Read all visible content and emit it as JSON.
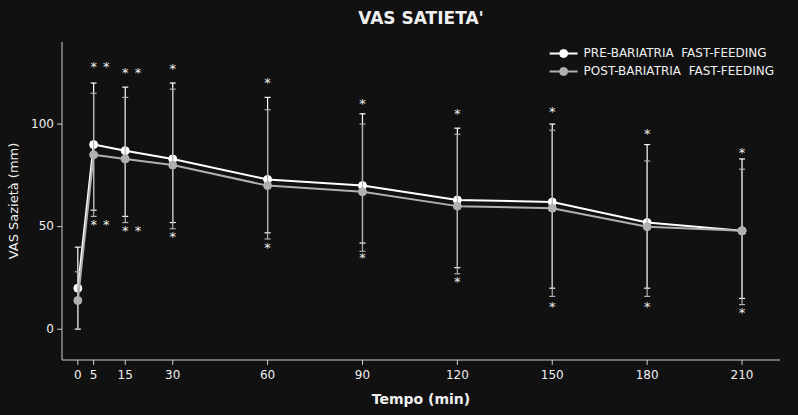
{
  "chart_data": {
    "type": "line",
    "title": "VAS SATIETA'",
    "xlabel": "Tempo (min)",
    "ylabel": "VAS Sazietà (mm)",
    "x": [
      0,
      5,
      15,
      30,
      60,
      90,
      120,
      150,
      180,
      210
    ],
    "xlim": [
      -5,
      222
    ],
    "xticks": [
      0,
      5,
      15,
      30,
      60,
      90,
      120,
      150,
      180,
      210
    ],
    "ylim": [
      -15,
      140
    ],
    "yticks": [
      0,
      50,
      100
    ],
    "grid": false,
    "legend": "upper right",
    "series": [
      {
        "name": "PRE-BARIATRIA  FAST-FEEDING",
        "color": "#ffffff",
        "marker": "circle",
        "values": [
          20,
          90,
          87,
          83,
          73,
          70,
          63,
          62,
          52,
          48
        ],
        "yerr_up": [
          20,
          30,
          31,
          37,
          40,
          35,
          35,
          38,
          38,
          35
        ],
        "yerr_down": [
          20,
          32,
          32,
          31,
          26,
          28,
          33,
          42,
          32,
          33
        ]
      },
      {
        "name": "POST-BARIATRIA  FAST-FEEDING",
        "color": "#b0b0b0",
        "marker": "circle",
        "values": [
          14,
          85,
          83,
          80,
          70,
          67,
          60,
          59,
          50,
          48
        ],
        "yerr_up": [
          14,
          30,
          30,
          37,
          37,
          33,
          35,
          38,
          32,
          30
        ],
        "yerr_down": [
          14,
          30,
          31,
          31,
          26,
          29,
          33,
          43,
          34,
          36
        ]
      }
    ],
    "annotations": [
      {
        "text": "*",
        "x": 5,
        "y": 126,
        "position": "above"
      },
      {
        "text": "*",
        "x": 5,
        "y": 54,
        "position": "below"
      },
      {
        "text": "*",
        "x": 9,
        "y": 126,
        "position": "above"
      },
      {
        "text": "*",
        "x": 9,
        "y": 54,
        "position": "below"
      },
      {
        "text": "*",
        "x": 15,
        "y": 123,
        "position": "above"
      },
      {
        "text": "*",
        "x": 15,
        "y": 51,
        "position": "below"
      },
      {
        "text": "*",
        "x": 19,
        "y": 123,
        "position": "above"
      },
      {
        "text": "*",
        "x": 19,
        "y": 51,
        "position": "below"
      },
      {
        "text": "*",
        "x": 30,
        "y": 125,
        "position": "above"
      },
      {
        "text": "*",
        "x": 30,
        "y": 48,
        "position": "below"
      },
      {
        "text": "*",
        "x": 60,
        "y": 118,
        "position": "above"
      },
      {
        "text": "*",
        "x": 60,
        "y": 43,
        "position": "below"
      },
      {
        "text": "*",
        "x": 90,
        "y": 108,
        "position": "above"
      },
      {
        "text": "*",
        "x": 90,
        "y": 38,
        "position": "below"
      },
      {
        "text": "*",
        "x": 120,
        "y": 103,
        "position": "above"
      },
      {
        "text": "*",
        "x": 120,
        "y": 26,
        "position": "below"
      },
      {
        "text": "*",
        "x": 150,
        "y": 104,
        "position": "above"
      },
      {
        "text": "*",
        "x": 150,
        "y": 14,
        "position": "below"
      },
      {
        "text": "*",
        "x": 180,
        "y": 93,
        "position": "above"
      },
      {
        "text": "*",
        "x": 180,
        "y": 14,
        "position": "below"
      },
      {
        "text": "*",
        "x": 210,
        "y": 84,
        "position": "above"
      },
      {
        "text": "*",
        "x": 210,
        "y": 11,
        "position": "below"
      }
    ]
  }
}
